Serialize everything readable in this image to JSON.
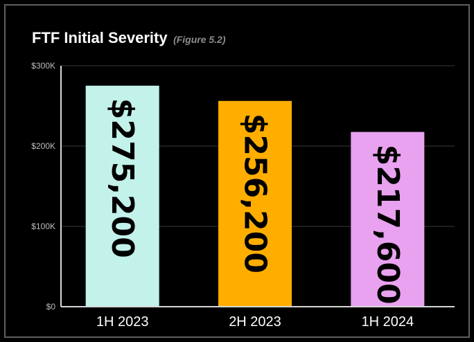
{
  "chart_data": {
    "type": "bar",
    "title": "FTF Initial Severity",
    "subtitle": "(Figure 5.2)",
    "categories": [
      "1H 2023",
      "2H 2023",
      "1H 2024"
    ],
    "values": [
      275200,
      256200,
      217600
    ],
    "value_labels": [
      "$275,200",
      "$256,200",
      "$217,600"
    ],
    "bar_colors": [
      "#c2f2ea",
      "#ffae00",
      "#e9a2ef"
    ],
    "ylim": [
      0,
      300000
    ],
    "y_ticks": [
      {
        "value": 0,
        "label": "$0"
      },
      {
        "value": 100000,
        "label": "$100K"
      },
      {
        "value": 200000,
        "label": "$200K"
      },
      {
        "value": 300000,
        "label": "$300K"
      }
    ],
    "grid": true,
    "legend": "none",
    "xlabel": "",
    "ylabel": ""
  },
  "colors": {
    "background": "#000000",
    "border": "#5f5f5f",
    "gridline": "#3a3a3a",
    "axis": "#d9d9d9",
    "title": "#ffffff",
    "subtitle": "#8c8c8c"
  }
}
